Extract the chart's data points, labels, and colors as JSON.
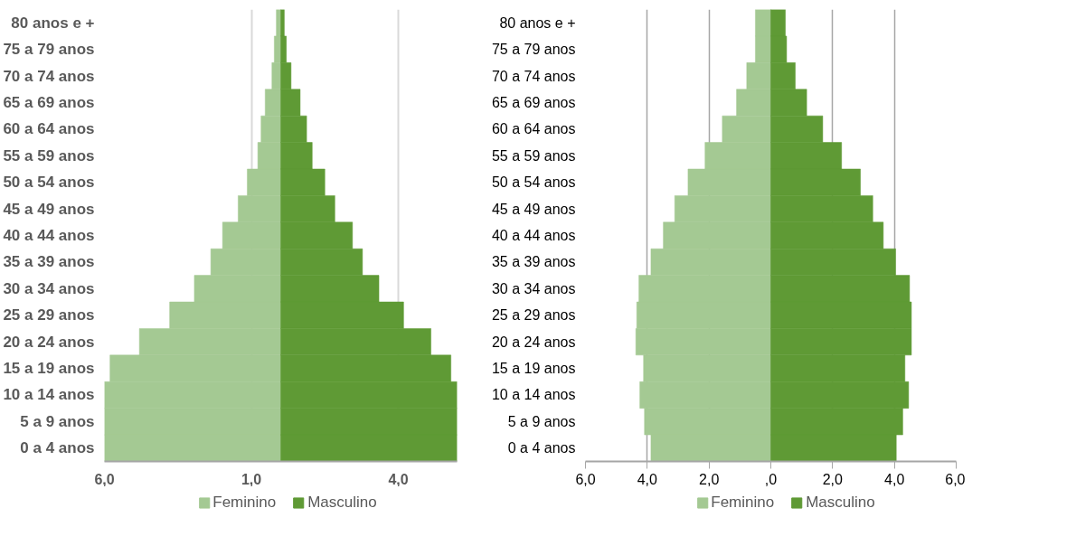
{
  "chart_data": [
    {
      "type": "bar",
      "orientation": "horizontal",
      "categories": [
        "80 anos e +",
        "75 a 79 anos",
        "70 a 74 anos",
        "65 a 69 anos",
        "60 a 64 anos",
        "55 a 59 anos",
        "50 a 54 anos",
        "45 a 49 anos",
        "40 a 44 anos",
        "35 a 39 anos",
        "30 a 34 anos",
        "25 a 29 anos",
        "20 a 24 anos",
        "15 a 19 anos",
        "10 a 14 anos",
        "5 a 9 anos",
        "0 a 4 anos"
      ],
      "series": [
        {
          "name": "Feminino",
          "color": "#a4c993",
          "values": [
            -0.15,
            -0.22,
            -0.3,
            -0.53,
            -0.67,
            -0.78,
            -1.14,
            -1.45,
            -1.98,
            -2.38,
            -2.94,
            -3.78,
            -4.81,
            -5.81,
            -6.0,
            -6.0,
            -6.0
          ]
        },
        {
          "name": "Masculino",
          "color": "#5f9a35",
          "values": [
            0.12,
            0.19,
            0.35,
            0.66,
            0.88,
            1.07,
            1.5,
            1.84,
            2.44,
            2.78,
            3.34,
            4.18,
            5.11,
            5.79,
            6.0,
            6.0,
            6.0
          ]
        }
      ],
      "stacked": true,
      "xlim": [
        -6,
        6
      ],
      "xticks": [
        {
          "value": -6,
          "label": "6,0"
        },
        {
          "value": -1,
          "label": "1,0"
        },
        {
          "value": 4,
          "label": "4,0"
        }
      ],
      "grid": "x",
      "legend": "bottom"
    },
    {
      "type": "bar",
      "orientation": "horizontal",
      "categories": [
        "80 anos e +",
        "75 a 79 anos",
        "70 a 74 anos",
        "65 a 69 anos",
        "60 a 64 anos",
        "55 a 59 anos",
        "50 a 54 anos",
        "45 a 49 anos",
        "40 a 44 anos",
        "35 a 39 anos",
        "30 a 34 anos",
        "25 a 29 anos",
        "20 a 24 anos",
        "15 a 19 anos",
        "10 a 14 anos",
        "5 a 9 anos",
        "0 a 4 anos"
      ],
      "series": [
        {
          "name": "Feminino",
          "color": "#a4c993",
          "values": [
            -0.5,
            -0.5,
            -0.78,
            -1.11,
            -1.57,
            -2.13,
            -2.68,
            -3.11,
            -3.48,
            -3.88,
            -4.27,
            -4.34,
            -4.37,
            -4.12,
            -4.24,
            -4.09,
            -3.88
          ]
        },
        {
          "name": "Masculino",
          "color": "#5f9a35",
          "values": [
            0.47,
            0.51,
            0.79,
            1.16,
            1.68,
            2.29,
            2.9,
            3.3,
            3.64,
            4.04,
            4.49,
            4.55,
            4.55,
            4.34,
            4.46,
            4.27,
            4.06
          ]
        }
      ],
      "stacked": true,
      "xlim": [
        -6,
        6
      ],
      "xticks": [
        {
          "value": -6,
          "label": "6,0"
        },
        {
          "value": -4,
          "label": "4,0"
        },
        {
          "value": -2,
          "label": "2,0"
        },
        {
          "value": 0,
          "label": ",0"
        },
        {
          "value": 2,
          "label": "2,0"
        },
        {
          "value": 4,
          "label": "4,0"
        },
        {
          "value": 6,
          "label": "6,0"
        }
      ],
      "grid": "x",
      "legend": "bottom"
    }
  ]
}
